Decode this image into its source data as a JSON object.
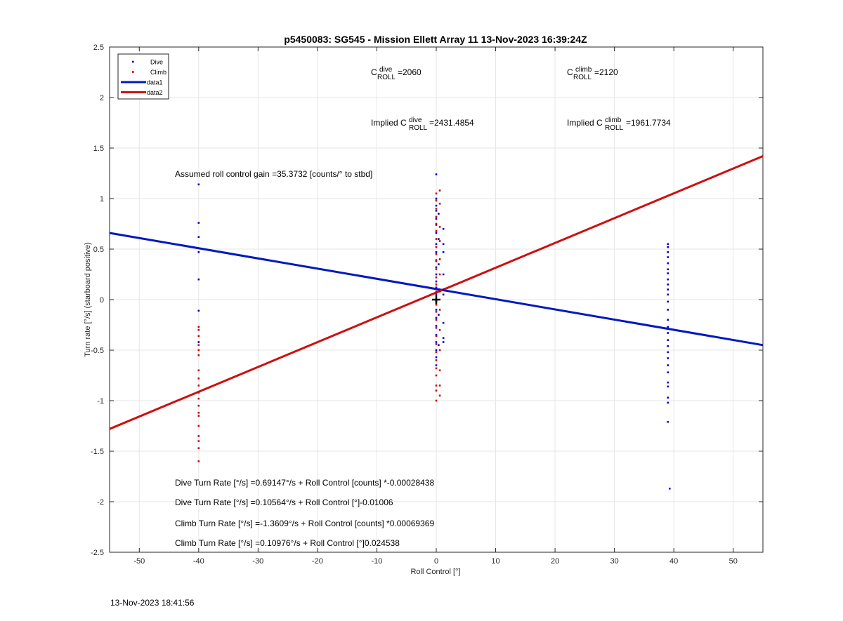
{
  "chart_data": {
    "type": "scatter",
    "title": "p5450083: SG545 - Mission Ellett Array 11 13-Nov-2023 16:39:24Z",
    "xlabel": "Roll Control [°]",
    "ylabel": "Turn rate [°/s] (starboard positive)",
    "xlim": [
      -55,
      55
    ],
    "ylim": [
      -2.5,
      2.5
    ],
    "xticks": [
      -50,
      -40,
      -30,
      -20,
      -10,
      0,
      10,
      20,
      30,
      40,
      50
    ],
    "yticks": [
      -2.5,
      -2,
      -1.5,
      -1,
      -0.5,
      0,
      0.5,
      1,
      1.5,
      2,
      2.5
    ],
    "xtick_labels": [
      "-50",
      "-40",
      "-30",
      "-20",
      "-10",
      "0",
      "10",
      "20",
      "30",
      "40",
      "50"
    ],
    "ytick_labels": [
      "-2.5",
      "-2",
      "-1.5",
      "-1",
      "-0.5",
      "0",
      "0.5",
      "1",
      "1.5",
      "2",
      "2.5"
    ],
    "grid": true,
    "legend_position": "top-left",
    "legend": [
      {
        "label": "Dive",
        "kind": "marker",
        "color": "#0000cc"
      },
      {
        "label": "Climb",
        "kind": "marker",
        "color": "#cc0000"
      },
      {
        "label": "data1",
        "kind": "line",
        "color": "#0018c0"
      },
      {
        "label": "data2",
        "kind": "line",
        "color": "#cc1010"
      }
    ],
    "series": [
      {
        "name": "Dive",
        "type": "scatter",
        "color": "#0000cc",
        "points": [
          [
            -40,
            1.14
          ],
          [
            -40,
            0.76
          ],
          [
            -40,
            0.62
          ],
          [
            -40,
            0.47
          ],
          [
            -40,
            0.2
          ],
          [
            -40,
            -0.11
          ],
          [
            -40,
            -0.42
          ],
          [
            0,
            1.24
          ],
          [
            0,
            1.0
          ],
          [
            0,
            0.93
          ],
          [
            0,
            0.88
          ],
          [
            0,
            0.8
          ],
          [
            0,
            0.74
          ],
          [
            0,
            0.66
          ],
          [
            0,
            0.55
          ],
          [
            0,
            0.47
          ],
          [
            0,
            0.39
          ],
          [
            0,
            0.32
          ],
          [
            0,
            0.25
          ],
          [
            0,
            0.18
          ],
          [
            0,
            0.12
          ],
          [
            0,
            0.05
          ],
          [
            0,
            -0.02
          ],
          [
            0,
            -0.1
          ],
          [
            0,
            -0.18
          ],
          [
            0,
            -0.26
          ],
          [
            0,
            -0.35
          ],
          [
            0,
            -0.42
          ],
          [
            0,
            -0.5
          ],
          [
            0,
            -0.57
          ],
          [
            0,
            -0.65
          ],
          [
            0.4,
            0.85
          ],
          [
            0.4,
            0.6
          ],
          [
            0.4,
            0.35
          ],
          [
            0.4,
            0.1
          ],
          [
            0.4,
            -0.15
          ],
          [
            0.4,
            -0.45
          ],
          [
            1.2,
            0.7
          ],
          [
            1.2,
            0.55
          ],
          [
            1.2,
            0.47
          ],
          [
            1.2,
            0.25
          ],
          [
            1.2,
            0.1
          ],
          [
            1.2,
            0.05
          ],
          [
            1.2,
            -0.23
          ],
          [
            1.2,
            -0.38
          ],
          [
            1.2,
            -0.42
          ],
          [
            39,
            0.55
          ],
          [
            39,
            0.52
          ],
          [
            39,
            0.47
          ],
          [
            39,
            0.42
          ],
          [
            39,
            0.36
          ],
          [
            39,
            0.3
          ],
          [
            39,
            0.26
          ],
          [
            39,
            0.2
          ],
          [
            39,
            0.15
          ],
          [
            39,
            0.1
          ],
          [
            39,
            0.05
          ],
          [
            39,
            -0.02
          ],
          [
            39,
            -0.1
          ],
          [
            39,
            -0.2
          ],
          [
            39,
            -0.27
          ],
          [
            39,
            -0.33
          ],
          [
            39,
            -0.4
          ],
          [
            39,
            -0.46
          ],
          [
            39,
            -0.52
          ],
          [
            39,
            -0.58
          ],
          [
            39,
            -0.65
          ],
          [
            39,
            -0.72
          ],
          [
            39,
            -0.82
          ],
          [
            39,
            -0.86
          ],
          [
            39,
            -0.97
          ],
          [
            39,
            -1.02
          ],
          [
            39,
            -1.21
          ],
          [
            39.3,
            -1.87
          ]
        ]
      },
      {
        "name": "Climb",
        "type": "scatter",
        "color": "#cc0000",
        "points": [
          [
            -40,
            -0.27
          ],
          [
            -40,
            -0.3
          ],
          [
            -40,
            -0.36
          ],
          [
            -40,
            -0.45
          ],
          [
            -40,
            -0.5
          ],
          [
            -40,
            -0.55
          ],
          [
            -40,
            -0.7
          ],
          [
            -40,
            -0.78
          ],
          [
            -40,
            -0.85
          ],
          [
            -40,
            -0.92
          ],
          [
            -40,
            -0.98
          ],
          [
            -40,
            -1.05
          ],
          [
            -40,
            -1.12
          ],
          [
            -40,
            -1.15
          ],
          [
            -40,
            -1.25
          ],
          [
            -40,
            -1.35
          ],
          [
            -40,
            -1.4
          ],
          [
            -40,
            -1.47
          ],
          [
            -40,
            -1.6
          ],
          [
            0,
            1.05
          ],
          [
            0,
            0.98
          ],
          [
            0,
            0.9
          ],
          [
            0,
            0.82
          ],
          [
            0,
            0.75
          ],
          [
            0,
            0.68
          ],
          [
            0,
            0.6
          ],
          [
            0,
            0.52
          ],
          [
            0,
            0.45
          ],
          [
            0,
            0.38
          ],
          [
            0,
            0.3
          ],
          [
            0,
            0.22
          ],
          [
            0,
            0.15
          ],
          [
            0,
            0.08
          ],
          [
            0,
            -0.05
          ],
          [
            0,
            -0.12
          ],
          [
            0,
            -0.2
          ],
          [
            0,
            -0.28
          ],
          [
            0,
            -0.36
          ],
          [
            0,
            -0.44
          ],
          [
            0,
            -0.52
          ],
          [
            0,
            -0.6
          ],
          [
            0,
            -0.68
          ],
          [
            0,
            -0.75
          ],
          [
            0,
            -0.85
          ],
          [
            0,
            -0.9
          ],
          [
            0,
            -1.0
          ],
          [
            0.6,
            1.08
          ],
          [
            0.6,
            0.95
          ],
          [
            0.6,
            0.72
          ],
          [
            0.6,
            0.58
          ],
          [
            0.6,
            0.4
          ],
          [
            0.6,
            0.25
          ],
          [
            0.6,
            0.08
          ],
          [
            0.6,
            -0.1
          ],
          [
            0.6,
            -0.3
          ],
          [
            0.6,
            -0.5
          ],
          [
            0.6,
            -0.7
          ],
          [
            0.6,
            -0.85
          ],
          [
            0.6,
            -0.95
          ]
        ]
      },
      {
        "name": "data1",
        "type": "line",
        "color": "#0018c0",
        "points": [
          [
            -55,
            0.66
          ],
          [
            55,
            -0.45
          ]
        ]
      },
      {
        "name": "data2",
        "type": "line",
        "color": "#cc1010",
        "points": [
          [
            -55,
            -1.28
          ],
          [
            55,
            1.42
          ]
        ]
      }
    ],
    "marker": {
      "symbol": "+",
      "x": 0,
      "y": 0,
      "color": "#000000"
    },
    "annotations": {
      "c_dive": {
        "base": "C",
        "sup": "dive",
        "sub": "ROLL",
        "value": "=2060"
      },
      "c_climb": {
        "base": "C",
        "sup": "climb",
        "sub": "ROLL",
        "value": "=2120"
      },
      "implied_dive": {
        "prefix": "Implied C",
        "sup": "dive",
        "sub": "ROLL",
        "value": "=2431.4854"
      },
      "implied_climb": {
        "prefix": "Implied C",
        "sup": "climb",
        "sub": "ROLL",
        "value": "=1961.7734"
      },
      "gain": "Assumed roll control gain =35.3732 [counts/° to stbd]",
      "eq1": "Dive Turn Rate [°/s] =0.69147°/s + Roll Control [counts] *-0.00028438",
      "eq2": "Dive Turn Rate [°/s] =0.10564°/s + Roll Control [°]-0.01006",
      "eq3": "Climb Turn Rate [°/s] =-1.3609°/s + Roll Control [counts] *0.00069369",
      "eq4": "Climb Turn Rate [°/s] =0.10976°/s + Roll Control [°]0.024538"
    }
  },
  "footer": {
    "timestamp": "13-Nov-2023 18:41:56"
  }
}
